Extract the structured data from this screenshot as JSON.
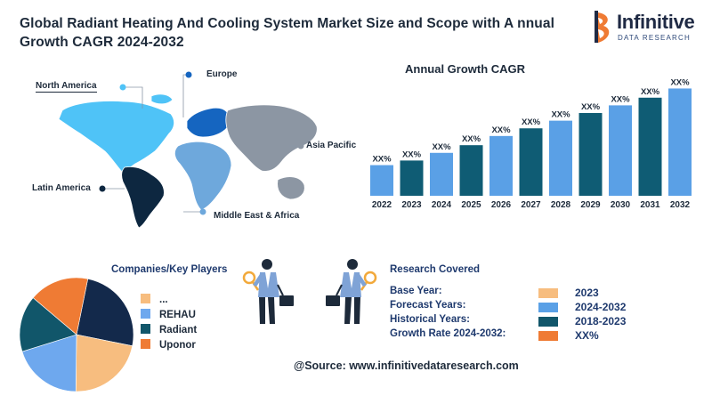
{
  "title": "Global Radiant Heating And Cooling System Market Size and Scope with A nnual Growth CAGR 2024-2032",
  "logo": {
    "name": "Infinitive",
    "subtitle": "DATA RESEARCH"
  },
  "map": {
    "regions": [
      {
        "name": "North America",
        "color": "#4fc3f7"
      },
      {
        "name": "Europe",
        "color": "#1565c0"
      },
      {
        "name": "Asia Pacific",
        "color": "#8c96a3"
      },
      {
        "name": "Latin America",
        "color": "#0d2740"
      },
      {
        "name": "Middle East & Africa",
        "color": "#6ea8dc"
      }
    ]
  },
  "chart_data": {
    "type": "bar",
    "title": "Annual Growth CAGR",
    "categories": [
      "2022",
      "2023",
      "2024",
      "2025",
      "2026",
      "2027",
      "2028",
      "2029",
      "2030",
      "2031",
      "2032"
    ],
    "data_labels": [
      "XX%",
      "XX%",
      "XX%",
      "XX%",
      "XX%",
      "XX%",
      "XX%",
      "XX%",
      "XX%",
      "XX%",
      "XX%"
    ],
    "values": [
      1.0,
      1.15,
      1.4,
      1.65,
      1.95,
      2.2,
      2.45,
      2.7,
      2.95,
      3.2,
      3.5
    ],
    "colors": [
      "#5aa0e6",
      "#0f5c74",
      "#5aa0e6",
      "#0f5c74",
      "#5aa0e6",
      "#0f5c74",
      "#5aa0e6",
      "#0f5c74",
      "#5aa0e6",
      "#0f5c74",
      "#5aa0e6"
    ],
    "ylim": [
      0,
      3.6
    ],
    "grid": false,
    "legend": "none"
  },
  "players": {
    "title": "Companies/Key Players",
    "items": [
      {
        "label": "...",
        "color": "#f7bd7f",
        "share": 25
      },
      {
        "label": "REHAU",
        "color": "#6ea8ee",
        "share": 25
      },
      {
        "label": "Radiant",
        "color": "#11566a",
        "share": 25
      },
      {
        "label": "Uponor",
        "color": "#ef7b34",
        "share": 25
      }
    ],
    "dark_color": "#13294b"
  },
  "research": {
    "title": "Research Covered",
    "rows": [
      {
        "label": "Base Year:",
        "value": "2023",
        "color": "#f7bd7f"
      },
      {
        "label": "Forecast Years:",
        "value": "2024-2032",
        "color": "#5aa0e6"
      },
      {
        "label": "Historical Years:",
        "value": "2018-2023",
        "color": "#11566a"
      },
      {
        "label": "Growth Rate 2024-2032:",
        "value": "XX%",
        "color": "#ef7b34"
      }
    ]
  },
  "source": "@Source: www.infinitivedataresearch.com"
}
